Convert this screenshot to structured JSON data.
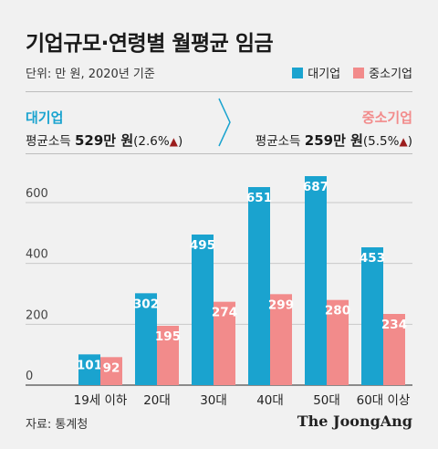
{
  "title": "기업규모·연령별 월평균 임금",
  "unit_note": "단위: 만 원, 2020년 기준",
  "colors": {
    "large": "#1aa3cf",
    "sme": "#f28b8b",
    "grid": "#c9c9c9",
    "arrow": "#9b1d1d"
  },
  "summary": {
    "large": {
      "name": "대기업",
      "prefix": "평균소득",
      "amount": "529만 원",
      "change": "(2.6%",
      "close": ")"
    },
    "sme": {
      "name": "중소기업",
      "prefix": "평균소득",
      "amount": "259만 원",
      "change": "(5.5%",
      "close": ")"
    }
  },
  "chart_data": {
    "type": "bar",
    "categories": [
      "19세 이하",
      "20대",
      "30대",
      "40대",
      "50대",
      "60대 이상"
    ],
    "series": [
      {
        "name": "대기업",
        "values": [
          101,
          302,
          495,
          651,
          687,
          453
        ]
      },
      {
        "name": "중소기업",
        "values": [
          92,
          195,
          274,
          299,
          280,
          234
        ]
      }
    ],
    "yticks": [
      0,
      200,
      400,
      600
    ],
    "ylim": [
      0,
      720
    ],
    "grid": true,
    "legend": "top-right"
  },
  "source": "자료: 통계청",
  "brand": "The JoongAng"
}
